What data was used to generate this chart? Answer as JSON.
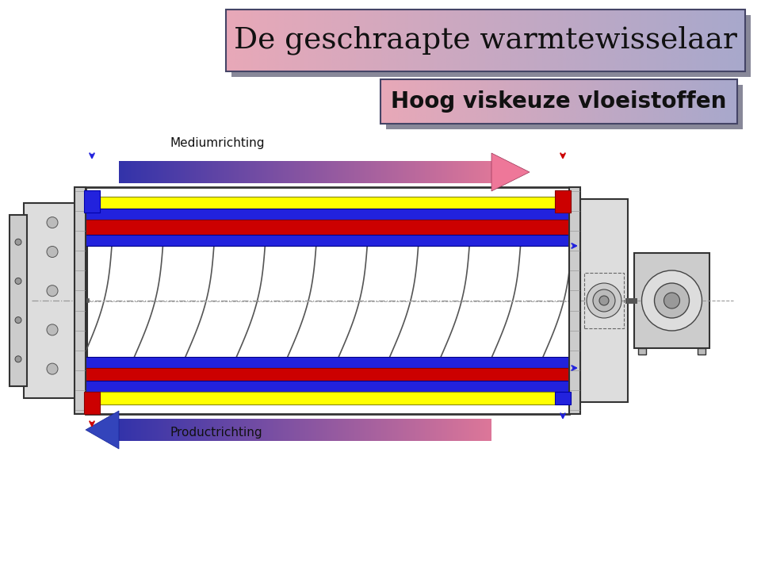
{
  "title1": "De geschraapte warmtewisselaar",
  "title2": "Hoog viskeuze vloeistoffen",
  "label_medium": "Mediumrichting",
  "label_product": "Productrichting",
  "bg_color": "#ffffff"
}
